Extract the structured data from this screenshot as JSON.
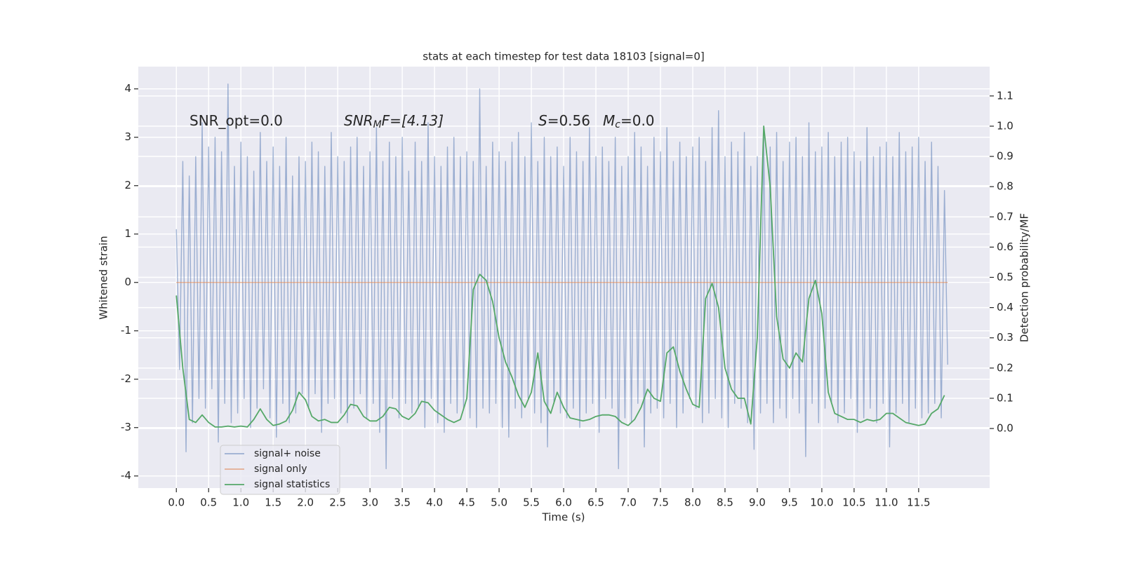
{
  "chart_data": {
    "type": "line",
    "title": "stats at each timestep for test data 18103 [signal=0]",
    "xlabel": "Time (s)",
    "ylabel": "Whitened strain",
    "y2label": "Detection probability/MF",
    "annotations": [
      {
        "main": "SNR_opt=0.0"
      },
      {
        "main": "SNR",
        "sub": "M",
        "rest": "F=[4.13]"
      },
      {
        "main": "S",
        "rest": "=0.56"
      },
      {
        "main": "M",
        "sub": "c",
        "rest": "=0.0"
      }
    ],
    "xlim": [
      -0.59,
      12.6
    ],
    "ylim": [
      -4.25,
      4.46
    ],
    "y2lim": [
      -0.197,
      1.197
    ],
    "xticks": [
      {
        "value": 0,
        "label": "0.0"
      },
      {
        "value": 0.5,
        "label": "0.5"
      },
      {
        "value": 1,
        "label": "1.0"
      },
      {
        "value": 1.5,
        "label": "1.5"
      },
      {
        "value": 2,
        "label": "2.0"
      },
      {
        "value": 2.5,
        "label": "2.5"
      },
      {
        "value": 3,
        "label": "3.0"
      },
      {
        "value": 3.5,
        "label": "3.5"
      },
      {
        "value": 4,
        "label": "4.0"
      },
      {
        "value": 4.5,
        "label": "4.5"
      },
      {
        "value": 5,
        "label": "5.0"
      },
      {
        "value": 5.5,
        "label": "5.5"
      },
      {
        "value": 6,
        "label": "6.0"
      },
      {
        "value": 6.5,
        "label": "6.5"
      },
      {
        "value": 7,
        "label": "7.0"
      },
      {
        "value": 7.5,
        "label": "7.5"
      },
      {
        "value": 8,
        "label": "8.0"
      },
      {
        "value": 8.5,
        "label": "8.5"
      },
      {
        "value": 9,
        "label": "9.0"
      },
      {
        "value": 9.5,
        "label": "9.5"
      },
      {
        "value": 10,
        "label": "10.0"
      },
      {
        "value": 10.5,
        "label": "10.5"
      },
      {
        "value": 11,
        "label": "11.0"
      },
      {
        "value": 11.5,
        "label": "11.5"
      }
    ],
    "yticks": [
      -4,
      -3,
      -2,
      -1,
      0,
      1,
      2,
      3,
      4
    ],
    "y2ticks": [
      {
        "value": 0,
        "label": "0.0"
      },
      {
        "value": 0.1,
        "label": "0.1"
      },
      {
        "value": 0.2,
        "label": "0.2"
      },
      {
        "value": 0.3,
        "label": "0.3"
      },
      {
        "value": 0.4,
        "label": "0.4"
      },
      {
        "value": 0.5,
        "label": "0.5"
      },
      {
        "value": 0.6,
        "label": "0.6"
      },
      {
        "value": 0.7,
        "label": "0.7"
      },
      {
        "value": 0.8,
        "label": "0.8"
      },
      {
        "value": 0.9,
        "label": "0.9"
      },
      {
        "value": 1,
        "label": "1.0"
      },
      {
        "value": 1.1,
        "label": "1.1"
      }
    ],
    "grid": true,
    "legend": "lower left",
    "series": [
      {
        "name": "signal+ noise",
        "color": "#4c72b0",
        "opacity": 0.5,
        "x": [
          0,
          0.05,
          0.1,
          0.15,
          0.2,
          0.25,
          0.3,
          0.35,
          0.4,
          0.45,
          0.5,
          0.55,
          0.6,
          0.65,
          0.7,
          0.75,
          0.8,
          0.85,
          0.9,
          0.95,
          1,
          1.05,
          1.1,
          1.15,
          1.2,
          1.25,
          1.3,
          1.35,
          1.4,
          1.45,
          1.5,
          1.55,
          1.6,
          1.65,
          1.7,
          1.75,
          1.8,
          1.85,
          1.9,
          1.95,
          2,
          2.05,
          2.1,
          2.15,
          2.2,
          2.25,
          2.3,
          2.35,
          2.4,
          2.45,
          2.5,
          2.55,
          2.6,
          2.65,
          2.7,
          2.75,
          2.8,
          2.85,
          2.9,
          2.95,
          3,
          3.05,
          3.1,
          3.15,
          3.2,
          3.25,
          3.3,
          3.35,
          3.4,
          3.45,
          3.5,
          3.55,
          3.6,
          3.65,
          3.7,
          3.75,
          3.8,
          3.85,
          3.9,
          3.95,
          4,
          4.05,
          4.1,
          4.15,
          4.2,
          4.25,
          4.3,
          4.35,
          4.4,
          4.45,
          4.5,
          4.55,
          4.6,
          4.65,
          4.7,
          4.75,
          4.8,
          4.85,
          4.9,
          4.95,
          5,
          5.05,
          5.1,
          5.15,
          5.2,
          5.25,
          5.3,
          5.35,
          5.4,
          5.45,
          5.5,
          5.55,
          5.6,
          5.65,
          5.7,
          5.75,
          5.8,
          5.85,
          5.9,
          5.95,
          6,
          6.05,
          6.1,
          6.15,
          6.2,
          6.25,
          6.3,
          6.35,
          6.4,
          6.45,
          6.5,
          6.55,
          6.6,
          6.65,
          6.7,
          6.75,
          6.8,
          6.85,
          6.9,
          6.95,
          7,
          7.05,
          7.1,
          7.15,
          7.2,
          7.25,
          7.3,
          7.35,
          7.4,
          7.45,
          7.5,
          7.55,
          7.6,
          7.65,
          7.7,
          7.75,
          7.8,
          7.85,
          7.9,
          7.95,
          8,
          8.05,
          8.1,
          8.15,
          8.2,
          8.25,
          8.3,
          8.35,
          8.4,
          8.45,
          8.5,
          8.55,
          8.6,
          8.65,
          8.7,
          8.75,
          8.8,
          8.85,
          8.9,
          8.95,
          9,
          9.05,
          9.1,
          9.15,
          9.2,
          9.25,
          9.3,
          9.35,
          9.4,
          9.45,
          9.5,
          9.55,
          9.6,
          9.65,
          9.7,
          9.75,
          9.8,
          9.85,
          9.9,
          9.95,
          10,
          10.05,
          10.1,
          10.15,
          10.2,
          10.25,
          10.3,
          10.35,
          10.4,
          10.45,
          10.5,
          10.55,
          10.6,
          10.65,
          10.7,
          10.75,
          10.8,
          10.85,
          10.9,
          10.95,
          11,
          11.05,
          11.1,
          11.15,
          11.2,
          11.25,
          11.3,
          11.35,
          11.4,
          11.45,
          11.5,
          11.55,
          11.6,
          11.65,
          11.7,
          11.75,
          11.8,
          11.85,
          11.9,
          11.95
        ],
        "values": [
          1.1,
          -1.8,
          2.5,
          -3.5,
          2.2,
          -2.9,
          2.6,
          -2.4,
          3.3,
          -2.6,
          2.8,
          -2.2,
          3.0,
          -3.3,
          2.7,
          -2.5,
          4.1,
          -2.9,
          2.4,
          -2.7,
          2.9,
          -2.4,
          2.6,
          -3.0,
          2.3,
          -2.6,
          3.1,
          -2.2,
          2.5,
          -2.8,
          2.8,
          -3.2,
          2.4,
          -2.5,
          3.0,
          -2.9,
          2.2,
          -2.7,
          2.6,
          -2.3,
          2.5,
          -2.6,
          2.9,
          -2.3,
          2.7,
          -3.1,
          2.4,
          -2.5,
          3.1,
          -2.4,
          2.6,
          -2.7,
          2.5,
          -2.9,
          2.8,
          -2.6,
          3.0,
          -2.3,
          2.4,
          -2.8,
          2.7,
          -2.5,
          3.2,
          -3.1,
          2.5,
          -3.85,
          2.9,
          -2.4,
          2.6,
          -2.8,
          3.0,
          -2.5,
          2.3,
          -2.7,
          2.9,
          -2.6,
          2.5,
          -3.0,
          3.3,
          -2.4,
          2.6,
          -2.9,
          2.4,
          -3.1,
          2.8,
          -2.5,
          3.0,
          -2.7,
          2.6,
          -2.6,
          2.7,
          -2.8,
          2.5,
          -3.0,
          4.0,
          -2.6,
          2.4,
          -2.7,
          2.9,
          -2.5,
          2.7,
          -3.0,
          2.5,
          -3.2,
          2.9,
          -2.6,
          3.1,
          -2.8,
          2.6,
          -2.4,
          3.3,
          -2.7,
          2.5,
          -2.9,
          3.0,
          -3.4,
          2.6,
          -2.5,
          2.8,
          -2.7,
          2.4,
          -2.8,
          3.0,
          -2.6,
          2.7,
          -3.0,
          2.5,
          -2.7,
          3.2,
          -2.5,
          2.6,
          -3.1,
          2.8,
          -2.4,
          2.5,
          -2.6,
          3.0,
          -3.85,
          2.4,
          -2.8,
          2.6,
          -2.9,
          3.1,
          -2.5,
          2.8,
          -3.4,
          2.4,
          -2.7,
          3.0,
          -2.6,
          2.7,
          -2.8,
          3.2,
          -2.5,
          2.5,
          -3.0,
          2.9,
          -2.7,
          2.6,
          -2.4,
          2.8,
          -2.6,
          3.0,
          -2.9,
          2.5,
          -2.7,
          3.2,
          -2.4,
          3.55,
          -2.8,
          2.6,
          -3.0,
          2.9,
          -2.5,
          2.7,
          -2.6,
          3.1,
          -2.9,
          2.4,
          -3.45,
          2.6,
          -2.7,
          3.0,
          -2.5,
          2.8,
          -2.9,
          3.1,
          -2.6,
          2.5,
          -2.8,
          2.9,
          -2.4,
          3.0,
          -2.7,
          2.6,
          -3.6,
          3.3,
          -2.5,
          2.7,
          -2.9,
          2.8,
          -2.6,
          3.1,
          -2.5,
          2.6,
          -2.9,
          2.9,
          -2.7,
          3.0,
          -2.4,
          2.7,
          -3.1,
          2.5,
          -2.8,
          3.2,
          -2.6,
          2.6,
          -2.9,
          2.8,
          -2.5,
          2.9,
          -3.4,
          2.6,
          -2.7,
          3.1,
          -2.5,
          2.7,
          -2.9,
          2.8,
          -2.6,
          3.0,
          -2.8,
          2.5,
          -2.7,
          2.9,
          -2.5,
          2.4,
          -2.8,
          1.9,
          -1.7
        ]
      },
      {
        "name": "signal only",
        "color": "#dd8452",
        "opacity": 0.6,
        "x": [
          0,
          11.95
        ],
        "values": [
          0,
          0
        ]
      },
      {
        "name": "signal statistics",
        "color": "#55a868",
        "axis": "y2",
        "x": [
          0,
          0.1,
          0.2,
          0.3,
          0.4,
          0.5,
          0.6,
          0.7,
          0.8,
          0.9,
          1,
          1.1,
          1.2,
          1.3,
          1.4,
          1.5,
          1.6,
          1.7,
          1.8,
          1.9,
          2,
          2.1,
          2.2,
          2.3,
          2.4,
          2.5,
          2.6,
          2.7,
          2.8,
          2.9,
          3,
          3.1,
          3.2,
          3.3,
          3.4,
          3.5,
          3.6,
          3.7,
          3.8,
          3.9,
          4,
          4.1,
          4.2,
          4.3,
          4.4,
          4.5,
          4.6,
          4.7,
          4.8,
          4.9,
          5,
          5.1,
          5.2,
          5.3,
          5.4,
          5.5,
          5.6,
          5.7,
          5.8,
          5.9,
          6,
          6.1,
          6.2,
          6.3,
          6.4,
          6.5,
          6.6,
          6.7,
          6.8,
          6.9,
          7,
          7.1,
          7.2,
          7.3,
          7.4,
          7.5,
          7.6,
          7.7,
          7.8,
          7.9,
          8,
          8.1,
          8.2,
          8.3,
          8.4,
          8.5,
          8.6,
          8.7,
          8.8,
          8.9,
          9,
          9.1,
          9.2,
          9.3,
          9.4,
          9.5,
          9.6,
          9.7,
          9.8,
          9.9,
          10,
          10.1,
          10.2,
          10.3,
          10.4,
          10.5,
          10.6,
          10.7,
          10.8,
          10.9,
          11,
          11.1,
          11.2,
          11.3,
          11.4,
          11.5,
          11.6,
          11.7,
          11.8,
          11.9
        ],
        "values": [
          0.44,
          0.2,
          0.03,
          0.02,
          0.045,
          0.02,
          0.005,
          0.005,
          0.008,
          0.005,
          0.008,
          0.005,
          0.03,
          0.065,
          0.03,
          0.01,
          0.015,
          0.025,
          0.06,
          0.12,
          0.095,
          0.04,
          0.025,
          0.03,
          0.02,
          0.02,
          0.045,
          0.08,
          0.075,
          0.04,
          0.025,
          0.025,
          0.04,
          0.07,
          0.065,
          0.04,
          0.03,
          0.05,
          0.09,
          0.085,
          0.06,
          0.045,
          0.03,
          0.02,
          0.03,
          0.1,
          0.46,
          0.51,
          0.49,
          0.42,
          0.3,
          0.22,
          0.17,
          0.11,
          0.07,
          0.12,
          0.25,
          0.09,
          0.05,
          0.12,
          0.07,
          0.035,
          0.03,
          0.025,
          0.03,
          0.04,
          0.045,
          0.045,
          0.04,
          0.02,
          0.01,
          0.03,
          0.07,
          0.13,
          0.1,
          0.09,
          0.25,
          0.27,
          0.19,
          0.13,
          0.08,
          0.07,
          0.43,
          0.48,
          0.4,
          0.2,
          0.13,
          0.1,
          0.1,
          0.015,
          0.3,
          1.0,
          0.8,
          0.37,
          0.23,
          0.2,
          0.25,
          0.22,
          0.43,
          0.49,
          0.38,
          0.12,
          0.05,
          0.04,
          0.03,
          0.03,
          0.02,
          0.03,
          0.025,
          0.03,
          0.05,
          0.05,
          0.035,
          0.02,
          0.015,
          0.01,
          0.015,
          0.05,
          0.065,
          0.11
        ]
      }
    ]
  }
}
